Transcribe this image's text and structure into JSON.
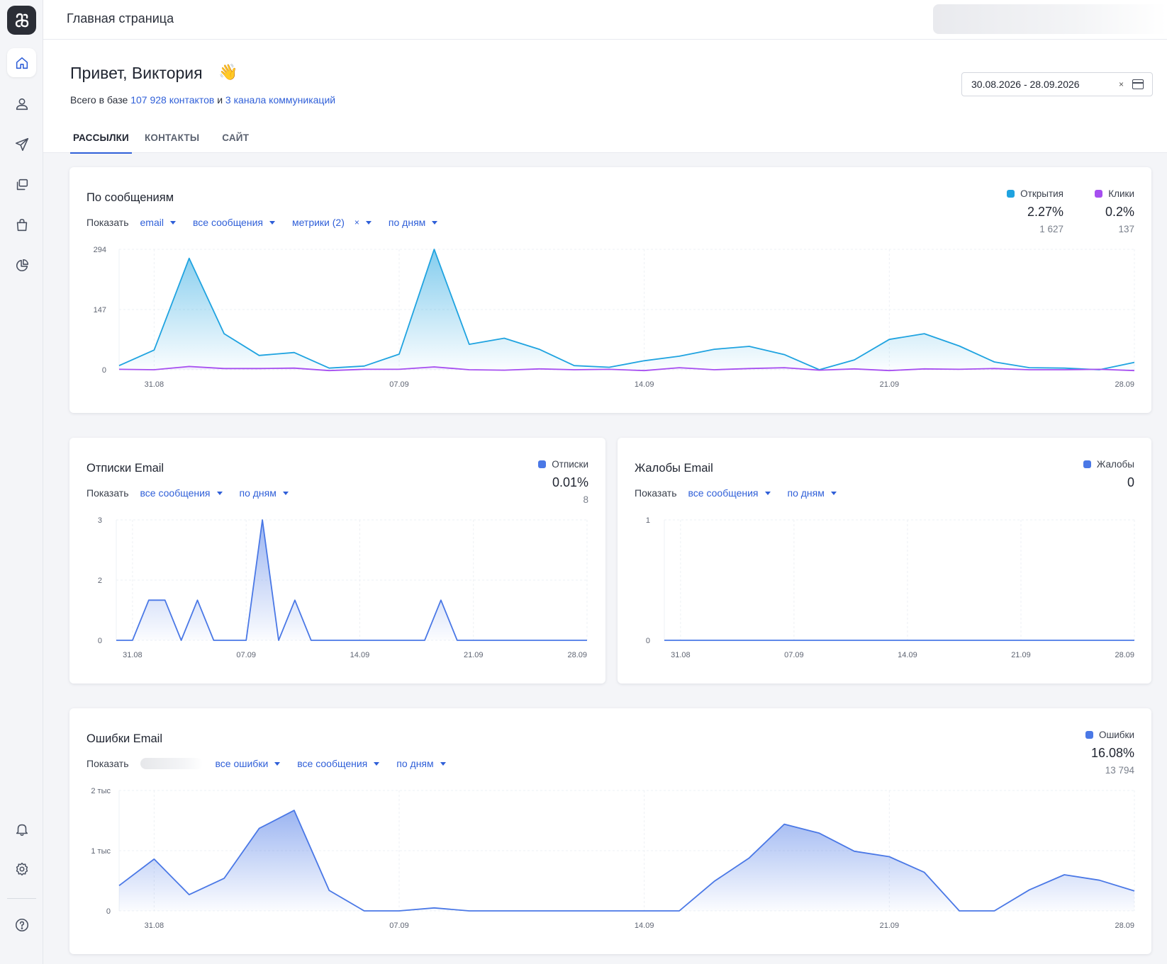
{
  "topbar": {
    "title": "Главная страница"
  },
  "header": {
    "greeting": "Привет, Виктория",
    "wave_emoji": "👋",
    "subtitle_prefix": "Всего в базе ",
    "contacts_link": "107 928 контактов",
    "subtitle_middle": " и ",
    "channels_link": "3 канала коммуникаций",
    "date_range": "30.08.2026 - 28.09.2026",
    "date_clear": "×",
    "tabs": [
      {
        "label": "РАССЫЛКИ",
        "active": true
      },
      {
        "label": "КОНТАКТЫ",
        "active": false
      },
      {
        "label": "САЙТ",
        "active": false
      }
    ]
  },
  "cards": {
    "messages": {
      "title": "По сообщениям",
      "show_label": "Показать",
      "filters": [
        "email",
        "все сообщения",
        "метрики (2)",
        "по дням"
      ],
      "filter_clear": "×",
      "legend": [
        {
          "name": "Открытия",
          "pct": "2.27%",
          "count": "1 627",
          "color": "#1fa3e0"
        },
        {
          "name": "Клики",
          "pct": "0.2%",
          "count": "137",
          "color": "#a64ff0"
        }
      ]
    },
    "unsubscribes": {
      "title": "Отписки Email",
      "show_label": "Показать",
      "filters": [
        "все сообщения",
        "по дням"
      ],
      "legend": [
        {
          "name": "Отписки",
          "pct": "0.01%",
          "count": "8",
          "color": "#4a78e6"
        }
      ]
    },
    "complaints": {
      "title": "Жалобы Email",
      "show_label": "Показать",
      "filters": [
        "все сообщения",
        "по дням"
      ],
      "legend": [
        {
          "name": "Жалобы",
          "pct": "0",
          "count": "",
          "color": "#4a78e6"
        }
      ]
    },
    "errors": {
      "title": "Ошибки Email",
      "show_label": "Показать",
      "filters": [
        "все ошибки",
        "все сообщения",
        "по дням"
      ],
      "legend": [
        {
          "name": "Ошибки",
          "pct": "16.08%",
          "count": "13 794",
          "color": "#4a78e6"
        }
      ]
    }
  },
  "chart_data": [
    {
      "type": "area",
      "x_ticks": [
        "31.08",
        "07.09",
        "14.09",
        "21.09",
        "28.09"
      ],
      "y_ticks": [
        "0",
        "147",
        "294"
      ],
      "ylim": [
        0,
        294
      ],
      "x": [
        "30.08",
        "31.08",
        "01.09",
        "02.09",
        "03.09",
        "04.09",
        "05.09",
        "06.09",
        "07.09",
        "08.09",
        "09.09",
        "10.09",
        "11.09",
        "12.09",
        "13.09",
        "14.09",
        "15.09",
        "16.09",
        "17.09",
        "18.09",
        "19.09",
        "20.09",
        "21.09",
        "22.09",
        "23.09",
        "24.09",
        "25.09",
        "26.09",
        "27.09",
        "28.09"
      ],
      "series": [
        {
          "name": "Открытия",
          "color": "#1fa3e0",
          "values": [
            10,
            48,
            272,
            88,
            35,
            42,
            4,
            9,
            38,
            294,
            62,
            77,
            50,
            10,
            6,
            22,
            33,
            50,
            57,
            37,
            0,
            24,
            74,
            88,
            58,
            19,
            5,
            4,
            0,
            18
          ]
        },
        {
          "name": "Клики",
          "color": "#a64ff0",
          "values": [
            1,
            0,
            8,
            3,
            3,
            4,
            -2,
            1,
            1,
            7,
            0,
            -1,
            2,
            0,
            1,
            -2,
            5,
            0,
            3,
            5,
            -1,
            2,
            -2,
            2,
            1,
            3,
            0,
            0,
            1,
            -2
          ]
        }
      ]
    },
    {
      "type": "area",
      "x_ticks": [
        "31.08",
        "07.09",
        "14.09",
        "21.09",
        "28.09"
      ],
      "y_ticks": [
        "0",
        "2",
        "3"
      ],
      "ylim": [
        0,
        3
      ],
      "x": [
        "30.08",
        "31.08",
        "01.09",
        "02.09",
        "03.09",
        "04.09",
        "05.09",
        "06.09",
        "07.09",
        "08.09",
        "09.09",
        "10.09",
        "11.09",
        "12.09",
        "13.09",
        "14.09",
        "15.09",
        "16.09",
        "17.09",
        "18.09",
        "19.09",
        "20.09",
        "21.09",
        "22.09",
        "23.09",
        "24.09",
        "25.09",
        "26.09",
        "27.09",
        "28.09"
      ],
      "series": [
        {
          "name": "Отписки",
          "color": "#4a78e6",
          "values": [
            0,
            0,
            1,
            1,
            0,
            1,
            0,
            0,
            0,
            3,
            0,
            1,
            0,
            0,
            0,
            0,
            0,
            0,
            0,
            0,
            1,
            0,
            0,
            0,
            0,
            0,
            0,
            0,
            0,
            0
          ]
        }
      ]
    },
    {
      "type": "area",
      "x_ticks": [
        "31.08",
        "07.09",
        "14.09",
        "21.09",
        "28.09"
      ],
      "y_ticks": [
        "0",
        "1"
      ],
      "ylim": [
        0,
        1
      ],
      "x": [
        "30.08",
        "31.08",
        "01.09",
        "02.09",
        "03.09",
        "04.09",
        "05.09",
        "06.09",
        "07.09",
        "08.09",
        "09.09",
        "10.09",
        "11.09",
        "12.09",
        "13.09",
        "14.09",
        "15.09",
        "16.09",
        "17.09",
        "18.09",
        "19.09",
        "20.09",
        "21.09",
        "22.09",
        "23.09",
        "24.09",
        "25.09",
        "26.09",
        "27.09",
        "28.09"
      ],
      "series": [
        {
          "name": "Жалобы",
          "color": "#4a78e6",
          "values": [
            0,
            0,
            0,
            0,
            0,
            0,
            0,
            0,
            0,
            0,
            0,
            0,
            0,
            0,
            0,
            0,
            0,
            0,
            0,
            0,
            0,
            0,
            0,
            0,
            0,
            0,
            0,
            0,
            0,
            0
          ]
        }
      ]
    },
    {
      "type": "area",
      "x_ticks": [
        "31.08",
        "07.09",
        "14.09",
        "21.09",
        "28.09"
      ],
      "y_ticks": [
        "0",
        "1 тыс",
        "2 тыс"
      ],
      "ylim": [
        0,
        2000
      ],
      "x": [
        "30.08",
        "31.08",
        "01.09",
        "02.09",
        "03.09",
        "04.09",
        "05.09",
        "06.09",
        "07.09",
        "08.09",
        "09.09",
        "10.09",
        "11.09",
        "12.09",
        "13.09",
        "14.09",
        "15.09",
        "16.09",
        "17.09",
        "18.09",
        "19.09",
        "20.09",
        "21.09",
        "22.09",
        "23.09",
        "24.09",
        "25.09",
        "26.09",
        "27.09",
        "28.09"
      ],
      "series": [
        {
          "name": "Ошибки",
          "color": "#4a78e6",
          "values": [
            420,
            860,
            270,
            540,
            1370,
            1670,
            340,
            0,
            0,
            50,
            0,
            0,
            0,
            0,
            0,
            0,
            0,
            490,
            880,
            1440,
            1290,
            990,
            900,
            640,
            0,
            0,
            350,
            600,
            510,
            330
          ]
        }
      ]
    }
  ]
}
